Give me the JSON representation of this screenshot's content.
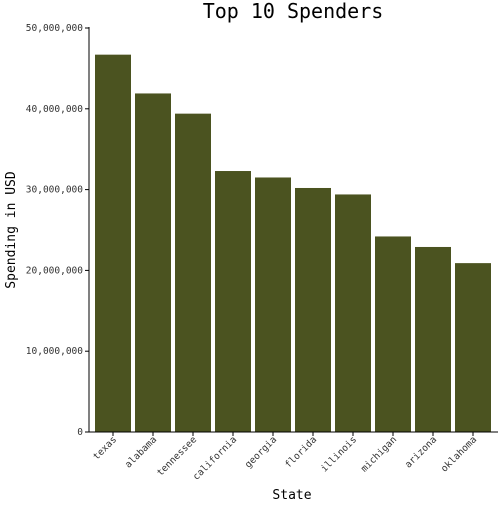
{
  "chart_data": {
    "type": "bar",
    "title": "Top 10 Spenders",
    "xlabel": "State",
    "ylabel": "Spending in USD",
    "categories": [
      "texas",
      "alabama",
      "tennessee",
      "california",
      "georgia",
      "florida",
      "illinois",
      "michigan",
      "arizona",
      "oklahoma"
    ],
    "values": [
      46700000,
      41900000,
      39400000,
      32300000,
      31500000,
      30200000,
      29400000,
      24200000,
      22900000,
      20900000
    ],
    "ylim": [
      0,
      50000000
    ],
    "yticks": [
      0,
      10000000,
      20000000,
      30000000,
      40000000,
      50000000
    ],
    "ytick_labels": [
      "0",
      "10,000,000",
      "20,000,000",
      "30,000,000",
      "40,000,000",
      "50,000,000"
    ],
    "grid": false,
    "bar_color": "#4b5320"
  }
}
